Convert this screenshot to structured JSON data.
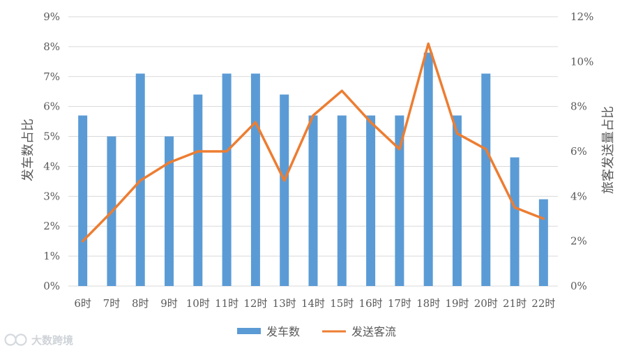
{
  "chart_data": {
    "type": "bar",
    "categories": [
      "6时",
      "7时",
      "8时",
      "9时",
      "10时",
      "11时",
      "12时",
      "13时",
      "14时",
      "15时",
      "16时",
      "17时",
      "18时",
      "19时",
      "20时",
      "21时",
      "22时"
    ],
    "series": [
      {
        "name": "发车数",
        "type": "bar",
        "axis": "left",
        "color": "#5b9bd5",
        "values": [
          5.7,
          5.0,
          7.1,
          5.0,
          6.4,
          7.1,
          7.1,
          6.4,
          5.7,
          5.7,
          5.7,
          5.7,
          7.8,
          5.7,
          7.1,
          4.3,
          2.9
        ]
      },
      {
        "name": "发送客流",
        "type": "line",
        "axis": "right",
        "color": "#ed7d31",
        "values": [
          2.0,
          3.3,
          4.7,
          5.5,
          6.0,
          6.0,
          7.3,
          4.7,
          7.6,
          8.7,
          7.3,
          6.1,
          10.8,
          6.8,
          6.1,
          3.5,
          3.0
        ]
      }
    ],
    "ylabel": "发车数占比",
    "y2label": "旅客发送量占比",
    "ylim": [
      0,
      9
    ],
    "y2lim": [
      0,
      12
    ],
    "yticks": [
      "0%",
      "1%",
      "2%",
      "3%",
      "4%",
      "5%",
      "6%",
      "7%",
      "8%",
      "9%"
    ],
    "y2ticks": [
      "0%",
      "2%",
      "4%",
      "6%",
      "8%",
      "10%",
      "12%"
    ],
    "grid": true,
    "legend_position": "bottom"
  },
  "watermark": {
    "text": "大数跨境",
    "icon": "logo-icon"
  }
}
